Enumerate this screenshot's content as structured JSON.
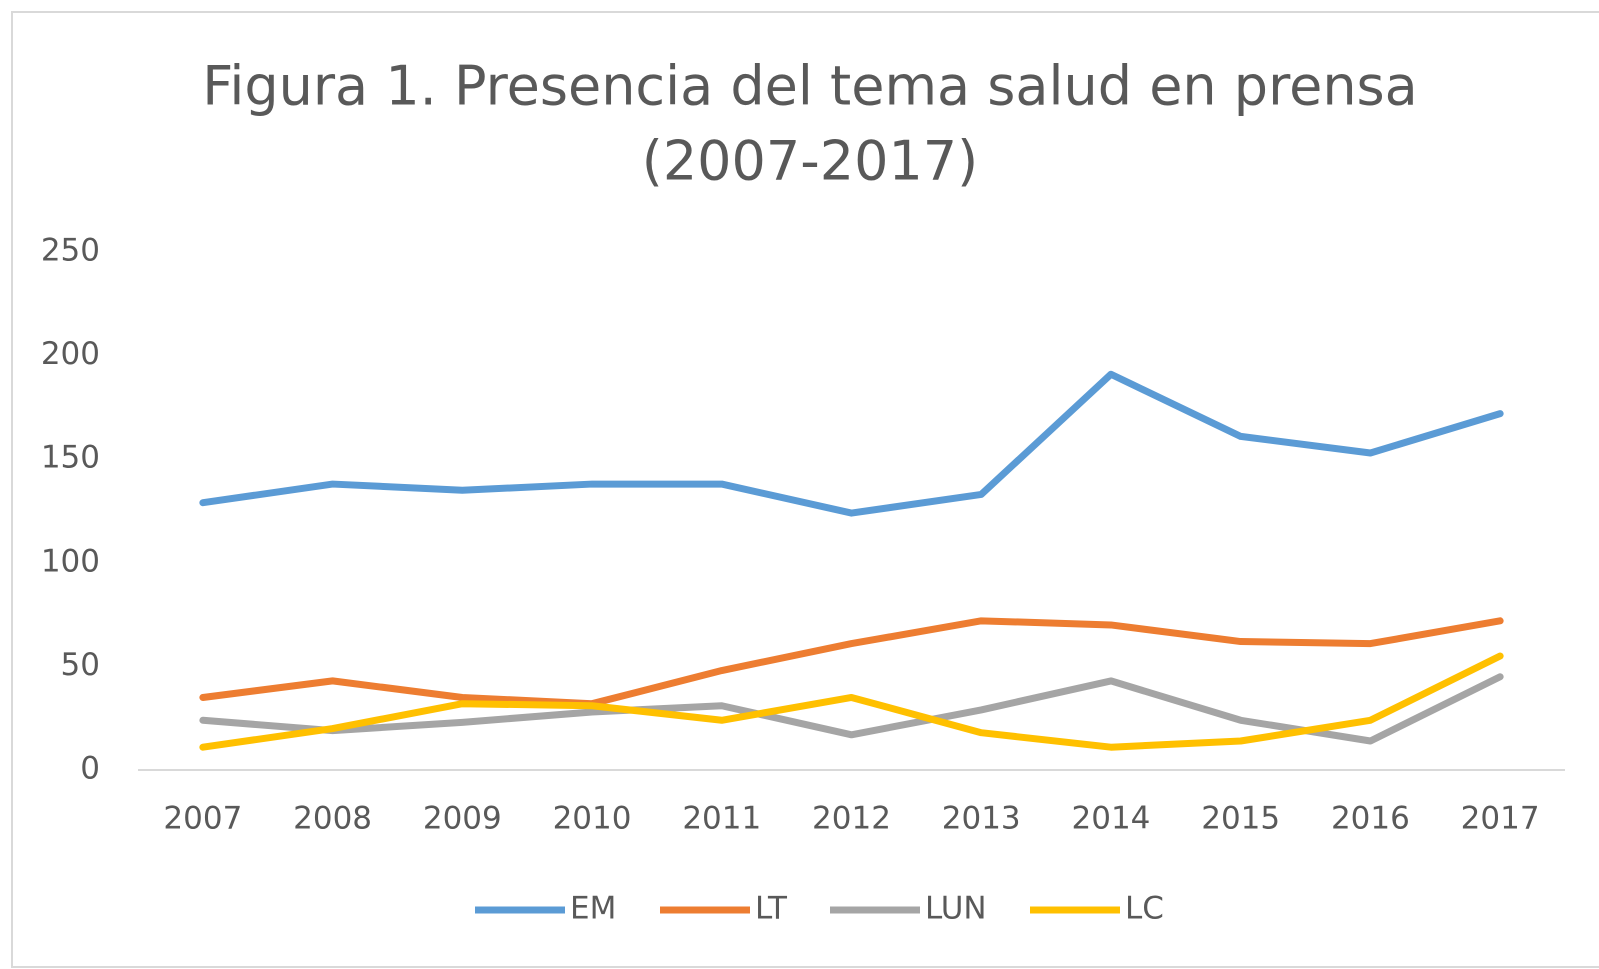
{
  "chart_data": {
    "type": "line",
    "title": "Figura 1. Presencia del tema salud en prensa",
    "subtitle": "(2007-2017)",
    "categories": [
      "2007",
      "2008",
      "2009",
      "2010",
      "2011",
      "2012",
      "2013",
      "2014",
      "2015",
      "2016",
      "2017"
    ],
    "series": [
      {
        "name": "EM",
        "color": "#5b9bd5",
        "values": [
          129,
          138,
          135,
          138,
          138,
          124,
          133,
          191,
          161,
          153,
          172
        ]
      },
      {
        "name": "LT",
        "color": "#ed7d31",
        "values": [
          35,
          43,
          35,
          32,
          48,
          61,
          72,
          70,
          62,
          61,
          72
        ]
      },
      {
        "name": "LUN",
        "color": "#a5a5a5",
        "values": [
          24,
          19,
          23,
          28,
          31,
          17,
          29,
          43,
          24,
          14,
          45
        ]
      },
      {
        "name": "LC",
        "color": "#ffc000",
        "values": [
          11,
          20,
          32,
          31,
          24,
          35,
          18,
          11,
          14,
          24,
          55
        ]
      }
    ],
    "ylim": [
      0,
      250
    ],
    "yticks": [
      0,
      50,
      100,
      150,
      200,
      250
    ],
    "grid": false,
    "legend": "bottom"
  }
}
